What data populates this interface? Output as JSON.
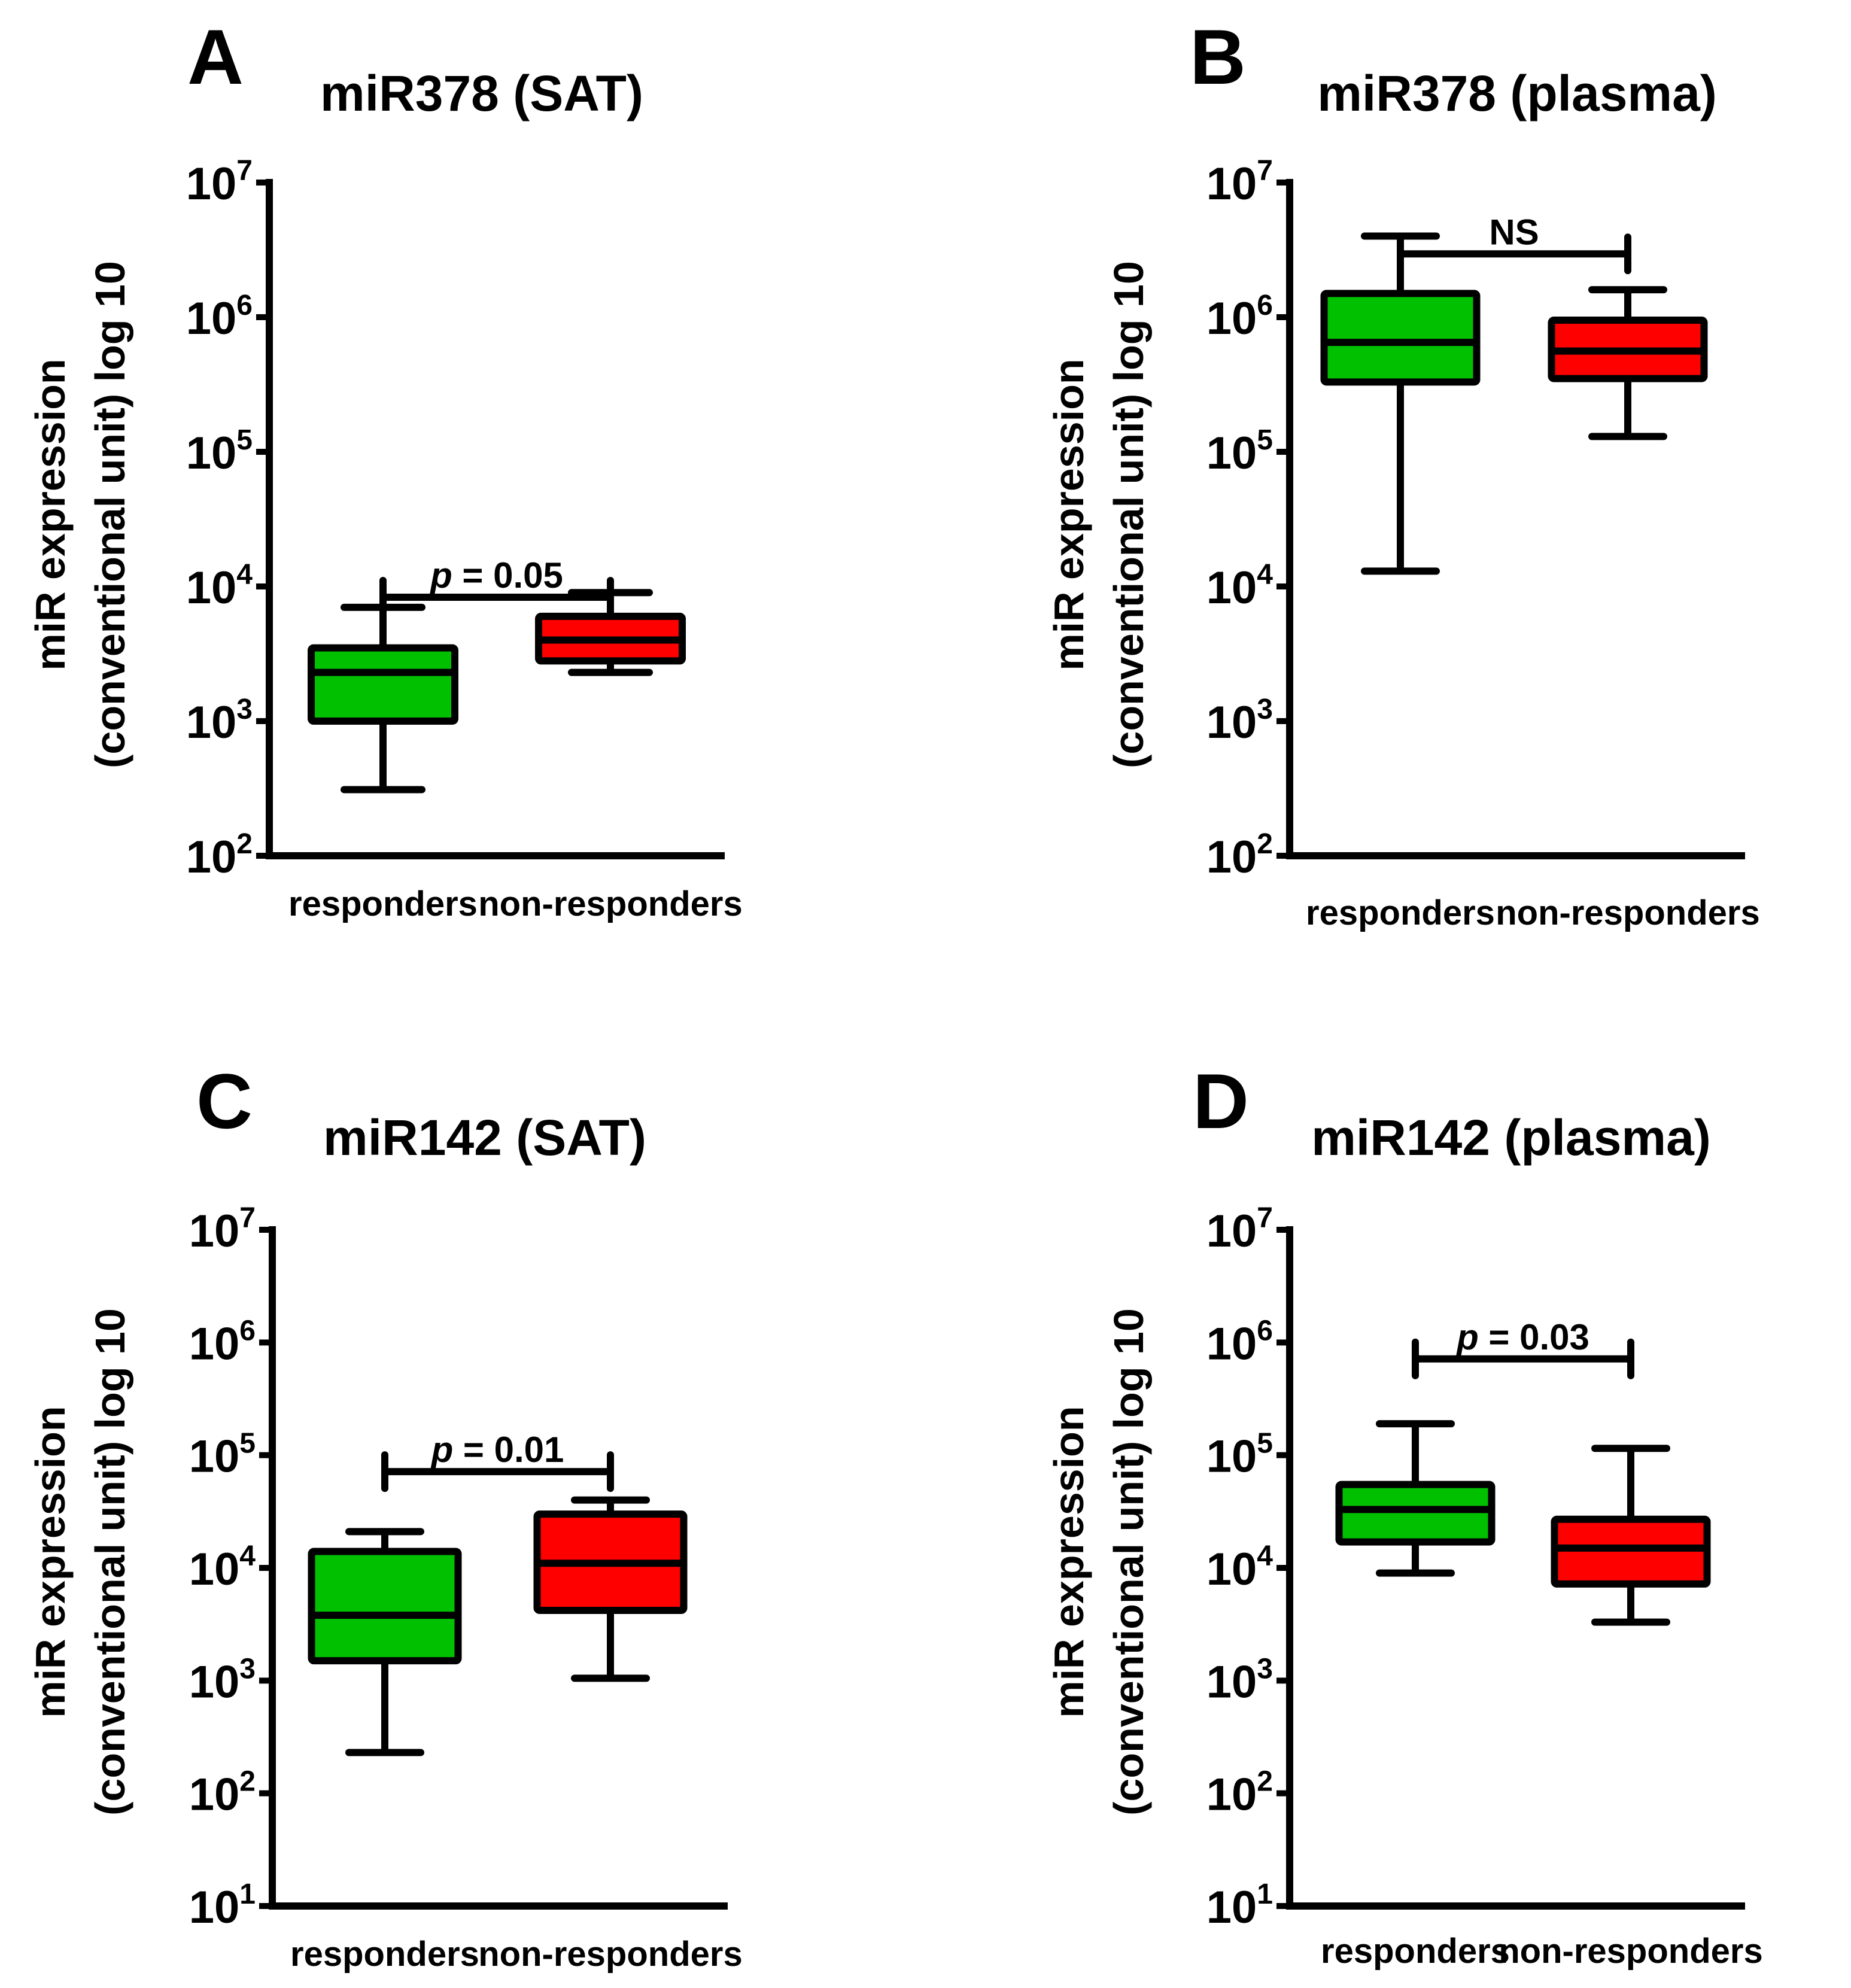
{
  "colors": {
    "responders": "#00c000",
    "non_responders": "#ff0000",
    "ink": "#000000"
  },
  "y_axis_label": {
    "line1": "miR expression",
    "line2": "(conventional unit) log 10"
  },
  "chart_data": [
    {
      "panel": "A",
      "title": "miR378 (SAT)",
      "type": "boxplot",
      "y_scale": "log10",
      "ylim_exp": [
        2,
        7
      ],
      "y_ticks": [
        2,
        3,
        4,
        5,
        6,
        7
      ],
      "categories": [
        "responders",
        "non-responders"
      ],
      "boxes": [
        {
          "group": "responders",
          "min": 310,
          "q1": 1000,
          "median": 2300,
          "q3": 3500,
          "max": 7000
        },
        {
          "group": "non-responders",
          "min": 2300,
          "q1": 2800,
          "median": 4000,
          "q3": 6000,
          "max": 9000
        }
      ],
      "comparison": {
        "italic": "p",
        "rest": " = 0.05",
        "bracket_top_exp": 4.0
      }
    },
    {
      "panel": "B",
      "title": "miR378 (plasma)",
      "type": "boxplot",
      "y_scale": "log10",
      "ylim_exp": [
        2,
        7
      ],
      "y_ticks": [
        2,
        3,
        4,
        5,
        6,
        7
      ],
      "categories": [
        "responders",
        "non-responders"
      ],
      "boxes": [
        {
          "group": "responders",
          "min": 13000,
          "q1": 330000,
          "median": 650000,
          "q3": 1500000,
          "max": 4000000
        },
        {
          "group": "non-responders",
          "min": 130000,
          "q1": 350000,
          "median": 560000,
          "q3": 950000,
          "max": 1600000
        }
      ],
      "comparison": {
        "italic": "",
        "rest": "NS",
        "bracket_top_exp": 6.55
      }
    },
    {
      "panel": "C",
      "title": "miR142 (SAT)",
      "type": "boxplot",
      "y_scale": "log10",
      "ylim_exp": [
        1,
        7
      ],
      "y_ticks": [
        1,
        2,
        3,
        4,
        5,
        6,
        7
      ],
      "categories": [
        "responders",
        "non-responders"
      ],
      "boxes": [
        {
          "group": "responders",
          "min": 230,
          "q1": 1500,
          "median": 3800,
          "q3": 14000,
          "max": 21000
        },
        {
          "group": "non-responders",
          "min": 1050,
          "q1": 4200,
          "median": 11000,
          "q3": 30000,
          "max": 40000
        }
      ],
      "comparison": {
        "italic": "p",
        "rest": " = 0.01",
        "bracket_top_exp": 4.95
      }
    },
    {
      "panel": "D",
      "title": "miR142 (plasma)",
      "type": "boxplot",
      "y_scale": "log10",
      "ylim_exp": [
        1,
        7
      ],
      "y_ticks": [
        1,
        2,
        3,
        4,
        5,
        6,
        7
      ],
      "categories": [
        "responders",
        "non-responders"
      ],
      "boxes": [
        {
          "group": "responders",
          "min": 9000,
          "q1": 17000,
          "median": 33000,
          "q3": 55000,
          "max": 190000
        },
        {
          "group": "non-responders",
          "min": 3300,
          "q1": 7200,
          "median": 15000,
          "q3": 27000,
          "max": 115000
        }
      ],
      "comparison": {
        "italic": "p",
        "rest": " = 0.03",
        "bracket_top_exp": 5.95
      }
    }
  ]
}
